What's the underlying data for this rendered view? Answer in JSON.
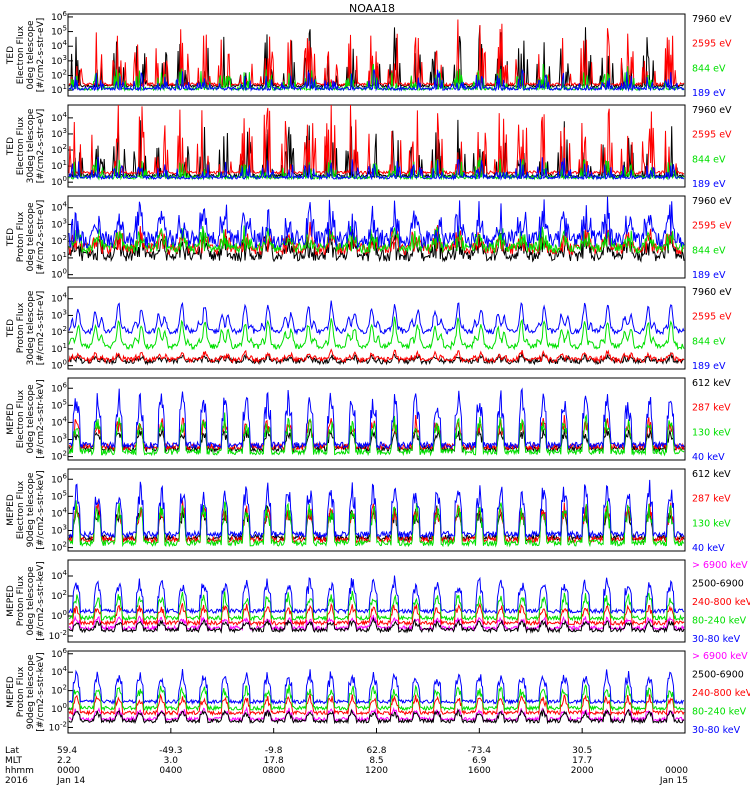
{
  "chart_data": {
    "type": "line",
    "title": "NOAA18",
    "x_axis": {
      "row_labels": [
        "Lat",
        "MLT",
        "hhmm",
        "2016"
      ],
      "ticks": [
        {
          "lat": "59.4",
          "mlt": "2.2",
          "hhmm": "0000",
          "date": "Jan 14"
        },
        {
          "lat": "-49.3",
          "mlt": "3.0",
          "hhmm": "0400",
          "date": ""
        },
        {
          "lat": "-9.8",
          "mlt": "17.8",
          "hhmm": "0800",
          "date": ""
        },
        {
          "lat": "62.8",
          "mlt": "8.5",
          "hhmm": "1200",
          "date": ""
        },
        {
          "lat": "-73.4",
          "mlt": "6.9",
          "hhmm": "1600",
          "date": ""
        },
        {
          "lat": "30.5",
          "mlt": "17.7",
          "hhmm": "2000",
          "date": ""
        },
        {
          "lat": "",
          "mlt": "",
          "hhmm": "0000",
          "date": "Jan 15"
        }
      ]
    },
    "colors": {
      "black": "#000000",
      "red": "#ff0000",
      "green": "#00e000",
      "blue": "#0000ff",
      "magenta": "#ff00ff"
    },
    "panels": [
      {
        "ylabel": [
          "TED",
          "Electron Flux",
          "0deg telescope",
          "[#/cm2-s-str-eV]"
        ],
        "yticks": [
          "10^1",
          "10^2",
          "10^3",
          "10^4",
          "10^5",
          "10^6"
        ],
        "ylim_log": [
          0.6,
          6.2
        ],
        "style": "ted_spiky",
        "series": [
          {
            "name": "7960 eV",
            "color": "black",
            "level": 1.2,
            "amp": 3.0
          },
          {
            "name": "2595 eV",
            "color": "red",
            "level": 1.3,
            "amp": 3.2
          },
          {
            "name": "844 eV",
            "color": "green",
            "level": 1.0,
            "amp": 1.2
          },
          {
            "name": "189 eV",
            "color": "blue",
            "level": 1.0,
            "amp": 1.0
          }
        ]
      },
      {
        "ylabel": [
          "TED",
          "Electron Flux",
          "30deg telescope",
          "[#/cm2-s-str-eV]"
        ],
        "yticks": [
          "10^0",
          "10^1",
          "10^2",
          "10^3",
          "10^4"
        ],
        "ylim_log": [
          -0.3,
          4.8
        ],
        "style": "ted_spiky",
        "series": [
          {
            "name": "7960 eV",
            "color": "black",
            "level": 0.3,
            "amp": 2.5
          },
          {
            "name": "2595 eV",
            "color": "red",
            "level": 0.5,
            "amp": 3.5
          },
          {
            "name": "844 eV",
            "color": "green",
            "level": 0.2,
            "amp": 1.0
          },
          {
            "name": "189 eV",
            "color": "blue",
            "level": 0.2,
            "amp": 1.0
          }
        ]
      },
      {
        "ylabel": [
          "TED",
          "Proton Flux",
          "0deg telescope",
          "[#/cm2-s-str-eV]"
        ],
        "yticks": [
          "10^0",
          "10^1",
          "10^2",
          "10^3",
          "10^4"
        ],
        "ylim_log": [
          -0.2,
          4.7
        ],
        "style": "ted_dense",
        "series": [
          {
            "name": "7960 eV",
            "color": "black",
            "level": 0.8,
            "amp": 1.5
          },
          {
            "name": "2595 eV",
            "color": "red",
            "level": 1.2,
            "amp": 1.5
          },
          {
            "name": "844 eV",
            "color": "green",
            "level": 1.3,
            "amp": 1.4
          },
          {
            "name": "189 eV",
            "color": "blue",
            "level": 1.6,
            "amp": 2.4
          }
        ]
      },
      {
        "ylabel": [
          "TED",
          "Proton Flux",
          "30deg telescope",
          "[#/cm2-s-str-eV]"
        ],
        "yticks": [
          "10^0",
          "10^1",
          "10^2",
          "10^3",
          "10^4"
        ],
        "ylim_log": [
          -0.2,
          4.7
        ],
        "style": "ted_waves",
        "series": [
          {
            "name": "7960 eV",
            "color": "black",
            "level": 0.1,
            "amp": 0.4
          },
          {
            "name": "2595 eV",
            "color": "red",
            "level": 0.2,
            "amp": 0.5
          },
          {
            "name": "844 eV",
            "color": "green",
            "level": 1.0,
            "amp": 1.7
          },
          {
            "name": "189 eV",
            "color": "blue",
            "level": 1.9,
            "amp": 1.8
          }
        ]
      },
      {
        "ylabel": [
          "MEPED",
          "Electron Flux",
          "0deg telescope",
          "[#/cm2-s-str-keV]"
        ],
        "yticks": [
          "10^2",
          "10^3",
          "10^4",
          "10^5",
          "10^6"
        ],
        "ylim_log": [
          1.8,
          6.6
        ],
        "style": "meped_e",
        "series": [
          {
            "name": "612 keV",
            "color": "black",
            "level": 2.3,
            "amp": 1.2
          },
          {
            "name": "287 keV",
            "color": "red",
            "level": 2.4,
            "amp": 1.8
          },
          {
            "name": "130 keV",
            "color": "green",
            "level": 2.1,
            "amp": 2.2
          },
          {
            "name": "40 keV",
            "color": "blue",
            "level": 2.5,
            "amp": 3.4
          }
        ]
      },
      {
        "ylabel": [
          "MEPED",
          "Electron Flux",
          "90deg telescope",
          "[#/cm2-s-str-keV]"
        ],
        "yticks": [
          "10^2",
          "10^3",
          "10^4",
          "10^5",
          "10^6"
        ],
        "ylim_log": [
          1.8,
          6.6
        ],
        "style": "meped_e90",
        "series": [
          {
            "name": "612 keV",
            "color": "black",
            "level": 2.4,
            "amp": 2.0
          },
          {
            "name": "287 keV",
            "color": "red",
            "level": 2.3,
            "amp": 2.3
          },
          {
            "name": "130 keV",
            "color": "green",
            "level": 2.1,
            "amp": 2.6
          },
          {
            "name": "40 keV",
            "color": "blue",
            "level": 2.6,
            "amp": 3.3
          }
        ]
      },
      {
        "ylabel": [
          "MEPED",
          "Proton Flux",
          "0deg telescope",
          "[#/cm2-s-str-keV]"
        ],
        "yticks": [
          "10^-2",
          "10^0",
          "10^2",
          "10^4"
        ],
        "ylim_log": [
          -2.6,
          5.6
        ],
        "style": "meped_p",
        "series": [
          {
            "name": "> 6900 keV",
            "color": "magenta",
            "level": -1.4,
            "amp": 1.2
          },
          {
            "name": "2500-6900",
            "color": "black",
            "level": -1.6,
            "amp": 1.0
          },
          {
            "name": "240-800 keV",
            "color": "red",
            "level": -0.9,
            "amp": 2.0
          },
          {
            "name": "80-240 keV",
            "color": "green",
            "level": -0.4,
            "amp": 2.6
          },
          {
            "name": "30-80 keV",
            "color": "blue",
            "level": 0.3,
            "amp": 3.6
          }
        ]
      },
      {
        "ylabel": [
          "MEPED",
          "Proton Flux",
          "90deg telescope",
          "[#/cm2-s-str-keV]"
        ],
        "yticks": [
          "10^-2",
          "10^0",
          "10^2",
          "10^4",
          "10^6"
        ],
        "ylim_log": [
          -2.6,
          6.3
        ],
        "style": "meped_p",
        "series": [
          {
            "name": "> 6900 keV",
            "color": "magenta",
            "level": -1.3,
            "amp": 1.2
          },
          {
            "name": "2500-6900",
            "color": "black",
            "level": -1.5,
            "amp": 1.2
          },
          {
            "name": "240-800 keV",
            "color": "red",
            "level": -0.6,
            "amp": 2.0
          },
          {
            "name": "80-240 keV",
            "color": "green",
            "level": -0.1,
            "amp": 2.6
          },
          {
            "name": "30-80 keV",
            "color": "blue",
            "level": 0.6,
            "amp": 3.6
          }
        ]
      }
    ]
  }
}
